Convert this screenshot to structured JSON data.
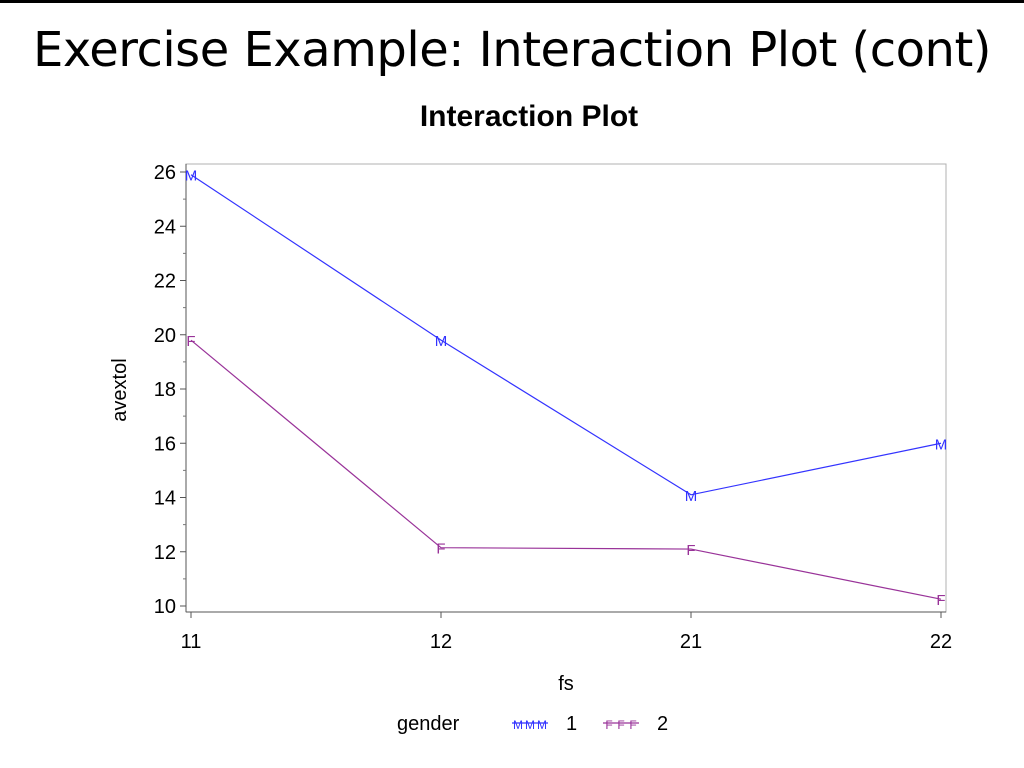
{
  "slide": {
    "title": "Exercise Example: Interaction Plot (cont)"
  },
  "chart_data": {
    "type": "line",
    "title": "Interaction Plot",
    "xlabel": "fs",
    "ylabel": "avextol",
    "categories": [
      "11",
      "12",
      "21",
      "22"
    ],
    "ylim": [
      10,
      26
    ],
    "yticks": [
      10,
      12,
      14,
      16,
      18,
      20,
      22,
      24,
      26
    ],
    "legend": {
      "title": "gender",
      "placement": "bottom-center"
    },
    "series": [
      {
        "name": "1",
        "marker": "M",
        "color": "#3333ff",
        "values": [
          25.9,
          19.8,
          14.1,
          16.0
        ]
      },
      {
        "name": "2",
        "marker": "F",
        "color": "#993399",
        "values": [
          19.8,
          12.15,
          12.1,
          10.25
        ]
      }
    ]
  }
}
